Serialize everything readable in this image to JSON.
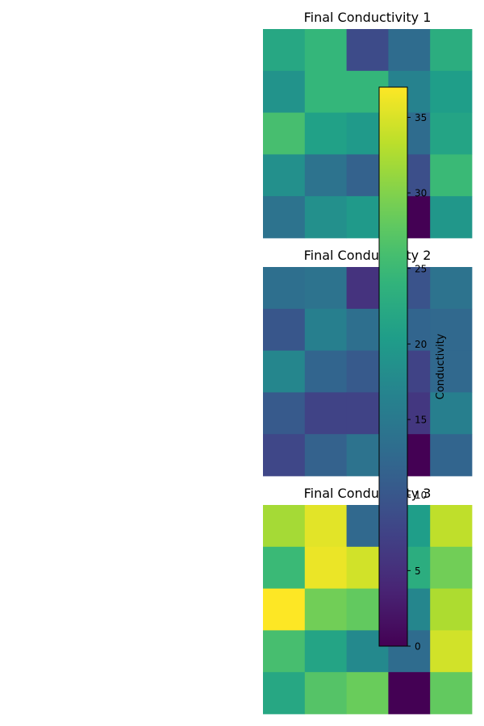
{
  "chart_data": [
    {
      "type": "heatmap",
      "title": "Final Conductivity 1",
      "rows": 5,
      "cols": 5,
      "values": [
        [
          22.0,
          24.5,
          8.5,
          13.0,
          23.0
        ],
        [
          19.0,
          24.5,
          24.5,
          16.5,
          20.5
        ],
        [
          26.0,
          21.0,
          20.0,
          13.0,
          21.5
        ],
        [
          18.5,
          14.0,
          11.5,
          9.0,
          25.0
        ],
        [
          14.0,
          18.5,
          20.0,
          0.0,
          19.5
        ]
      ]
    },
    {
      "type": "heatmap",
      "title": "Final Conductivity 2",
      "rows": 5,
      "cols": 5,
      "values": [
        [
          13.5,
          14.0,
          5.5,
          9.5,
          14.0
        ],
        [
          10.0,
          16.0,
          13.5,
          12.0,
          12.5
        ],
        [
          17.0,
          12.0,
          10.5,
          7.5,
          12.5
        ],
        [
          10.5,
          7.5,
          7.5,
          6.0,
          16.0
        ],
        [
          8.0,
          11.5,
          14.0,
          0.0,
          12.0
        ]
      ]
    },
    {
      "type": "heatmap",
      "title": "Final Conductivity 3",
      "rows": 5,
      "cols": 5,
      "values": [
        [
          32.0,
          35.5,
          12.5,
          20.5,
          33.5
        ],
        [
          25.0,
          36.0,
          34.5,
          23.0,
          29.0
        ],
        [
          37.0,
          29.0,
          28.0,
          17.0,
          32.5
        ],
        [
          26.0,
          21.5,
          17.5,
          13.0,
          34.5
        ],
        [
          22.0,
          27.0,
          28.5,
          0.0,
          28.0
        ]
      ]
    }
  ],
  "colorbar": {
    "label": "Conductivity",
    "vmin": 0,
    "vmax": 37,
    "colormap": "viridis",
    "ticks": [
      "0",
      "5",
      "10",
      "15",
      "20",
      "25",
      "30",
      "35"
    ]
  }
}
